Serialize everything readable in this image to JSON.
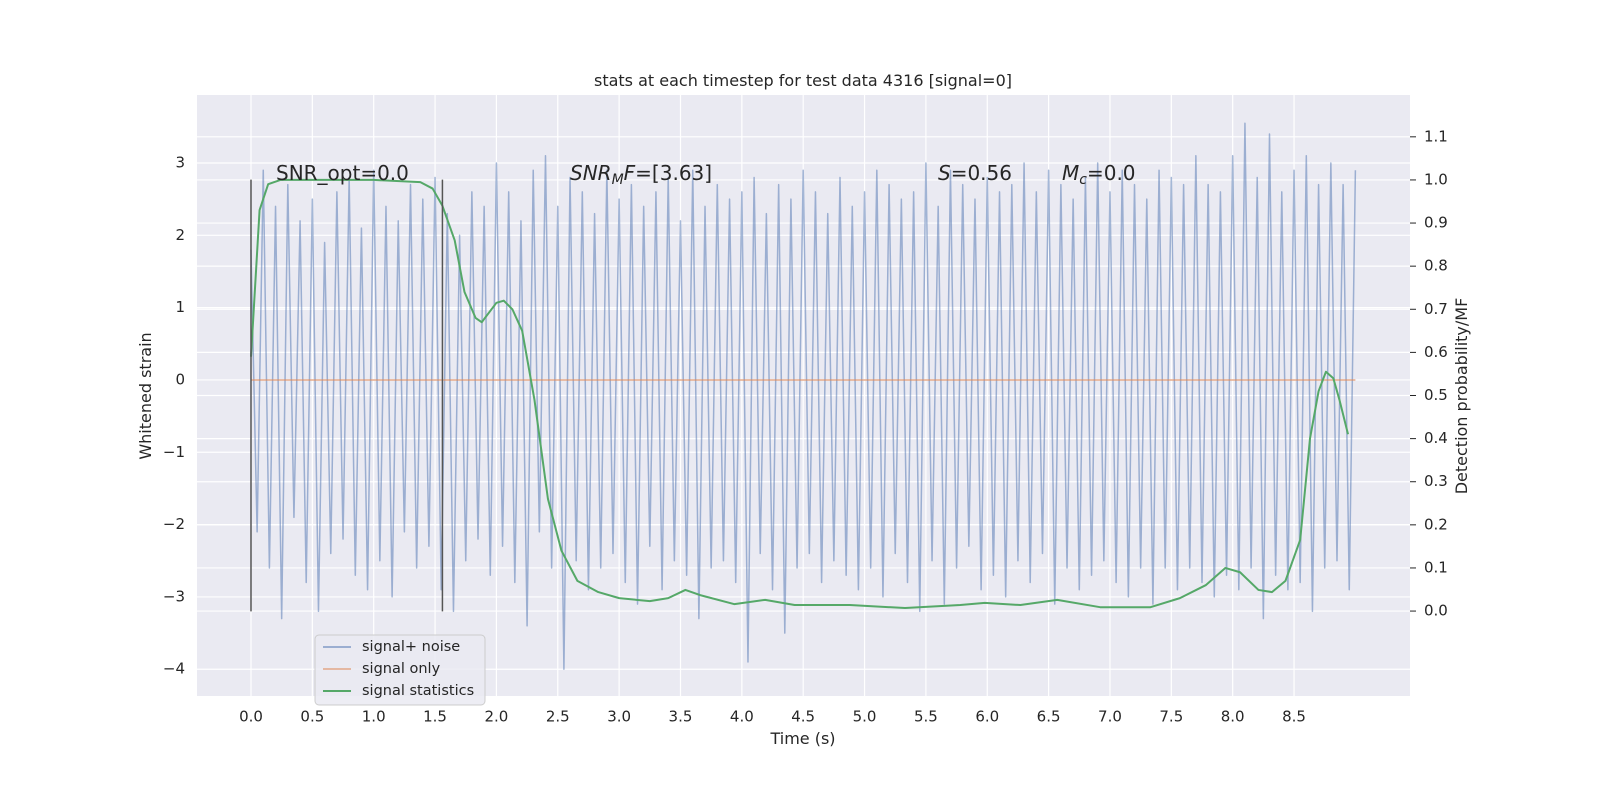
{
  "chart_data": {
    "type": "line",
    "title": "stats at each timestep for test data 4316 [signal=0]",
    "xlabel": "Time (s)",
    "ylabel": "Whitened strain",
    "y2label": "Detection probability/MF",
    "xlim": [
      -0.44,
      9.445
    ],
    "ylim": [
      -4.37,
      3.94
    ],
    "y2lim": [
      -0.197,
      1.197
    ],
    "xticks": [
      {
        "value": 0,
        "label": "0.0"
      },
      {
        "value": 0.5,
        "label": "0.5"
      },
      {
        "value": 1,
        "label": "1.0"
      },
      {
        "value": 1.5,
        "label": "1.5"
      },
      {
        "value": 2,
        "label": "2.0"
      },
      {
        "value": 2.5,
        "label": "2.5"
      },
      {
        "value": 3,
        "label": "3.0"
      },
      {
        "value": 3.5,
        "label": "3.5"
      },
      {
        "value": 4,
        "label": "4.0"
      },
      {
        "value": 4.5,
        "label": "4.5"
      },
      {
        "value": 5,
        "label": "5.0"
      },
      {
        "value": 5.5,
        "label": "5.5"
      },
      {
        "value": 6,
        "label": "6.0"
      },
      {
        "value": 6.5,
        "label": "6.5"
      },
      {
        "value": 7,
        "label": "7.0"
      },
      {
        "value": 7.5,
        "label": "7.5"
      },
      {
        "value": 8,
        "label": "8.0"
      },
      {
        "value": 8.5,
        "label": "8.5"
      }
    ],
    "yticks": [
      {
        "value": -4,
        "label": "−4"
      },
      {
        "value": -3,
        "label": "−3"
      },
      {
        "value": -2,
        "label": "−2"
      },
      {
        "value": -1,
        "label": "−1"
      },
      0,
      1,
      2,
      3
    ],
    "y2ticks": [
      {
        "value": 0,
        "label": "0.0"
      },
      {
        "value": 0.1,
        "label": "0.1"
      },
      {
        "value": 0.2,
        "label": "0.2"
      },
      {
        "value": 0.3,
        "label": "0.3"
      },
      {
        "value": 0.4,
        "label": "0.4"
      },
      {
        "value": 0.5,
        "label": "0.5"
      },
      {
        "value": 0.6,
        "label": "0.6"
      },
      {
        "value": 0.7,
        "label": "0.7"
      },
      {
        "value": 0.8,
        "label": "0.8"
      },
      {
        "value": 0.9,
        "label": "0.9"
      },
      {
        "value": 1,
        "label": "1.0"
      },
      {
        "value": 1.1,
        "label": "1.1"
      }
    ],
    "grid": true,
    "legend": "lower left",
    "series": [
      {
        "name": "signal+ noise",
        "color": "#4c72b0",
        "opacity": 0.5,
        "x": [
          0,
          0.05,
          0.1,
          0.15,
          0.2,
          0.25,
          0.3,
          0.35,
          0.4,
          0.45,
          0.5,
          0.55,
          0.6,
          0.65,
          0.7,
          0.75,
          0.8,
          0.85,
          0.9,
          0.95,
          1,
          1.05,
          1.1,
          1.15,
          1.2,
          1.25,
          1.3,
          1.35,
          1.4,
          1.45,
          1.5,
          1.55,
          1.6,
          1.65,
          1.7,
          1.75,
          1.8,
          1.85,
          1.9,
          1.95,
          2,
          2.05,
          2.1,
          2.15,
          2.2,
          2.25,
          2.3,
          2.35,
          2.4,
          2.45,
          2.5,
          2.55,
          2.6,
          2.65,
          2.7,
          2.75,
          2.8,
          2.85,
          2.9,
          2.95,
          3,
          3.05,
          3.1,
          3.15,
          3.2,
          3.25,
          3.3,
          3.35,
          3.4,
          3.45,
          3.5,
          3.55,
          3.6,
          3.65,
          3.7,
          3.75,
          3.8,
          3.85,
          3.9,
          3.95,
          4,
          4.05,
          4.1,
          4.15,
          4.2,
          4.25,
          4.3,
          4.35,
          4.4,
          4.45,
          4.5,
          4.55,
          4.6,
          4.65,
          4.7,
          4.75,
          4.8,
          4.85,
          4.9,
          4.95,
          5,
          5.05,
          5.1,
          5.15,
          5.2,
          5.25,
          5.3,
          5.35,
          5.4,
          5.45,
          5.5,
          5.55,
          5.6,
          5.65,
          5.7,
          5.75,
          5.8,
          5.85,
          5.9,
          5.95,
          6,
          6.05,
          6.1,
          6.15,
          6.2,
          6.25,
          6.3,
          6.35,
          6.4,
          6.45,
          6.5,
          6.55,
          6.6,
          6.65,
          6.7,
          6.75,
          6.8,
          6.85,
          6.9,
          6.95,
          7,
          7.05,
          7.1,
          7.15,
          7.2,
          7.25,
          7.3,
          7.35,
          7.4,
          7.45,
          7.5,
          7.55,
          7.6,
          7.65,
          7.7,
          7.75,
          7.8,
          7.85,
          7.9,
          7.95,
          8,
          8.05,
          8.1,
          8.15,
          8.2,
          8.25,
          8.3,
          8.35,
          8.4,
          8.45,
          8.5,
          8.55,
          8.6,
          8.65,
          8.7,
          8.75,
          8.8,
          8.85,
          8.9,
          8.95,
          9
        ],
        "values": [
          1.8,
          -2.1,
          2.9,
          -2.6,
          2.4,
          -3.3,
          2.7,
          -1.9,
          2.2,
          -2.8,
          2.5,
          -3.2,
          1.9,
          -2.4,
          2.6,
          -2.2,
          2.8,
          -2.7,
          2.1,
          -2.9,
          2.9,
          -2.5,
          2.4,
          -3.0,
          2.2,
          -2.1,
          2.7,
          -2.6,
          2.5,
          -2.3,
          2.8,
          -2.9,
          2.3,
          -3.2,
          2.0,
          -2.5,
          2.6,
          -2.2,
          2.4,
          -2.7,
          3.0,
          -2.3,
          2.6,
          -2.8,
          2.2,
          -3.4,
          2.9,
          -2.1,
          3.1,
          -2.6,
          2.4,
          -4.0,
          2.8,
          -2.5,
          2.6,
          -2.9,
          2.3,
          -2.6,
          2.9,
          -2.4,
          2.5,
          -2.8,
          2.7,
          -3.1,
          2.4,
          -2.3,
          2.6,
          -2.9,
          2.8,
          -2.5,
          2.2,
          -2.7,
          2.9,
          -3.3,
          2.4,
          -2.6,
          2.7,
          -2.5,
          2.5,
          -2.8,
          2.6,
          -3.9,
          2.8,
          -2.4,
          2.3,
          -2.9,
          2.7,
          -3.5,
          2.5,
          -2.6,
          2.9,
          -2.4,
          2.6,
          -2.8,
          2.3,
          -2.5,
          2.8,
          -2.7,
          2.4,
          -2.9,
          2.6,
          -2.6,
          2.9,
          -3.0,
          2.7,
          -2.4,
          2.5,
          -2.8,
          2.6,
          -3.2,
          3.0,
          -2.5,
          2.4,
          -3.1,
          2.9,
          -2.6,
          2.7,
          -2.3,
          2.5,
          -2.9,
          2.8,
          -2.7,
          2.6,
          -3.0,
          2.7,
          -2.5,
          3.0,
          -2.8,
          2.6,
          -2.4,
          2.9,
          -3.1,
          2.7,
          -2.6,
          2.5,
          -2.9,
          2.8,
          -2.7,
          3.0,
          -2.5,
          2.6,
          -2.8,
          2.9,
          -3.0,
          2.7,
          -2.6,
          2.5,
          -3.1,
          2.9,
          -2.6,
          2.8,
          -2.9,
          2.7,
          -2.6,
          3.1,
          -2.8,
          2.7,
          -3.0,
          2.6,
          -2.7,
          3.1,
          -2.9,
          3.55,
          -2.6,
          2.8,
          -3.3,
          3.4,
          -2.7,
          2.6,
          -2.9,
          2.9,
          -2.8,
          3.1,
          -3.2,
          2.7,
          -2.6,
          3.0,
          -2.5,
          2.7,
          -2.9,
          2.9
        ]
      },
      {
        "name": "signal only",
        "color": "#dd8452",
        "opacity": 0.5,
        "x": [
          0,
          9
        ],
        "values": [
          0,
          0
        ]
      },
      {
        "name": "signal statistics",
        "color": "#55a868",
        "opacity": 1,
        "axis": "y2",
        "x": [
          0,
          0.07,
          0.14,
          0.24,
          0.5,
          1,
          1.38,
          1.48,
          1.56,
          1.66,
          1.74,
          1.83,
          1.88,
          2,
          2.06,
          2.13,
          2.21,
          2.31,
          2.42,
          2.53,
          2.66,
          2.83,
          3,
          3.25,
          3.4,
          3.54,
          3.66,
          3.94,
          4.19,
          4.43,
          4.88,
          5.33,
          5.78,
          5.98,
          6.27,
          6.57,
          6.92,
          7.33,
          7.57,
          7.78,
          7.94,
          8.06,
          8.21,
          8.32,
          8.43,
          8.55,
          8.63,
          8.7,
          8.76,
          8.82,
          8.87,
          8.94
        ],
        "values": [
          0.59,
          0.93,
          0.99,
          1,
          1,
          1,
          0.995,
          0.98,
          0.94,
          0.86,
          0.74,
          0.68,
          0.67,
          0.715,
          0.72,
          0.7,
          0.65,
          0.49,
          0.26,
          0.14,
          0.07,
          0.044,
          0.03,
          0.023,
          0.03,
          0.049,
          0.037,
          0.016,
          0.026,
          0.014,
          0.014,
          0.007,
          0.014,
          0.019,
          0.014,
          0.026,
          0.009,
          0.009,
          0.03,
          0.06,
          0.1,
          0.09,
          0.049,
          0.044,
          0.07,
          0.165,
          0.4,
          0.51,
          0.555,
          0.54,
          0.49,
          0.41
        ]
      }
    ],
    "vlines": [
      {
        "x": 0,
        "ymin": -3.2,
        "ymax": 2.77,
        "color": "#555555"
      },
      {
        "x": 1.56,
        "ymin": -3.2,
        "ymax": 2.77,
        "color": "#555555"
      }
    ],
    "annotations": [
      [
        {
          "text": "SNR_opt=0.0"
        }
      ],
      [
        {
          "text": "SNR",
          "style": "italic"
        },
        {
          "text": "M",
          "style": "sub"
        },
        {
          "text": "F",
          "style": "italic"
        },
        {
          "text": "=[3.63]"
        }
      ],
      [
        {
          "text": "S",
          "style": "italic"
        },
        {
          "text": "=0.56"
        }
      ],
      [
        {
          "text": "M",
          "style": "italic"
        },
        {
          "text": "c",
          "style": "sub"
        },
        {
          "text": "=0.0"
        }
      ]
    ]
  }
}
